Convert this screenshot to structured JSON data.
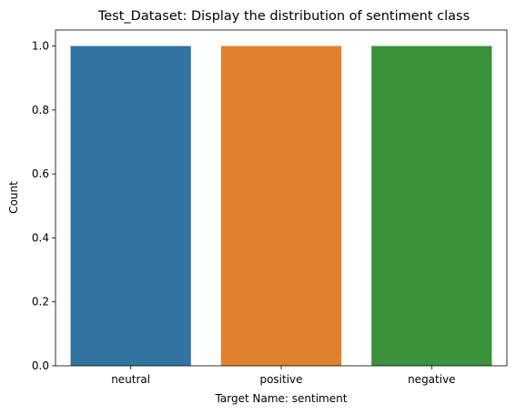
{
  "chart_data": {
    "type": "bar",
    "title": "Test_Dataset: Display the distribution of sentiment class",
    "xlabel": "Target Name: sentiment",
    "ylabel": "Count",
    "categories": [
      "neutral",
      "positive",
      "negative"
    ],
    "values": [
      1.0,
      1.0,
      1.0
    ],
    "colors": [
      "#3274a1",
      "#e1812c",
      "#3a923a"
    ],
    "ylim": [
      0,
      1.05
    ],
    "yticks": [
      "0.0",
      "0.2",
      "0.4",
      "0.6",
      "0.8",
      "1.0"
    ],
    "grid": false,
    "legend": "none"
  }
}
